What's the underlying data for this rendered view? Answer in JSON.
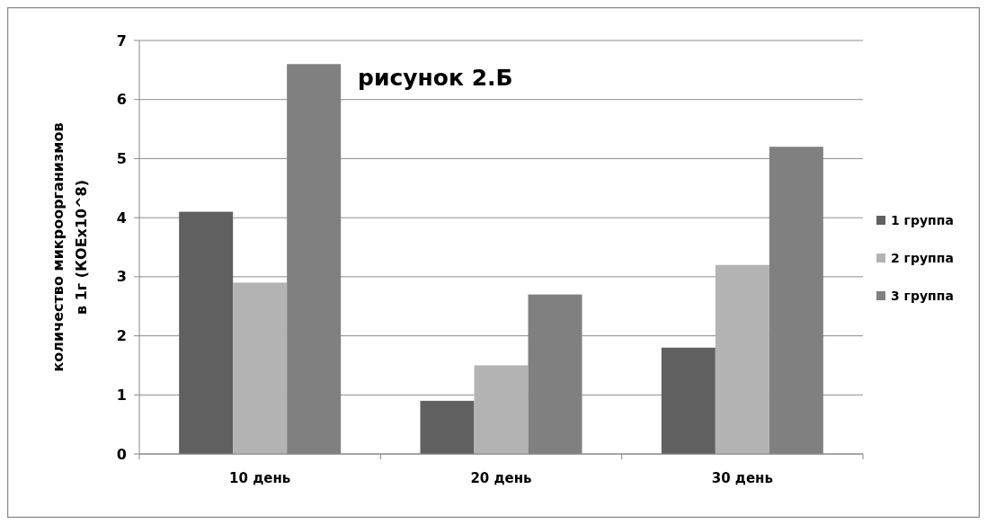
{
  "chart_data": {
    "type": "bar",
    "title": "рисунок 2.Б",
    "ylabel": "количество микроорганизмов\nв 1г (КОЕх10^8)",
    "categories": [
      "10 день",
      "20 день",
      "30 день"
    ],
    "series": [
      {
        "name": "1 группа",
        "color": "#606060",
        "values": [
          4.1,
          0.9,
          1.8
        ]
      },
      {
        "name": "2 группа",
        "color": "#b3b3b3",
        "values": [
          2.9,
          1.5,
          3.2
        ]
      },
      {
        "name": "3 группа",
        "color": "#808080",
        "values": [
          6.6,
          2.7,
          5.2
        ]
      }
    ],
    "ylim": [
      0,
      7
    ],
    "yticks": [
      0,
      1,
      2,
      3,
      4,
      5,
      6,
      7
    ],
    "grid": "y",
    "legend": "right"
  }
}
